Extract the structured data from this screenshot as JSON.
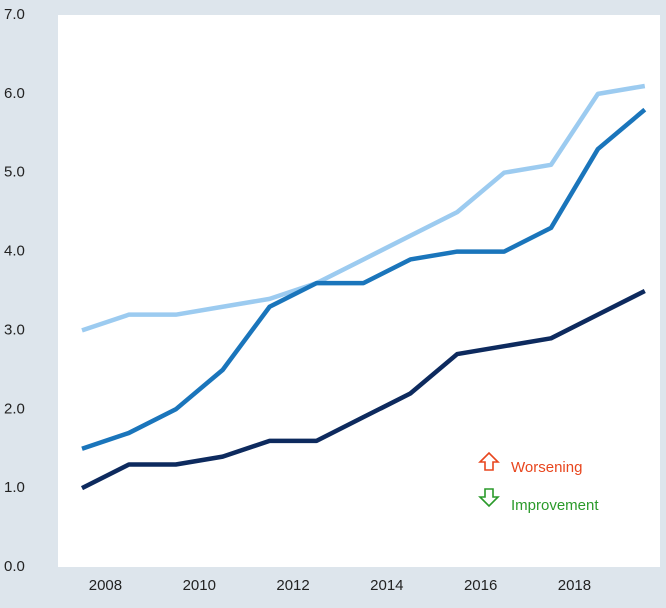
{
  "chart_data": {
    "type": "line",
    "categories": [
      null,
      "2008",
      null,
      "2010",
      null,
      "2012",
      null,
      "2014",
      null,
      "2016",
      null,
      "2018",
      null
    ],
    "series": [
      {
        "color": "#9ccbf0",
        "values": [
          3.0,
          3.2,
          3.2,
          3.3,
          3.4,
          3.6,
          3.9,
          4.2,
          4.5,
          5.0,
          5.1,
          6.0,
          6.1
        ]
      },
      {
        "color": "#1a75bb",
        "values": [
          1.5,
          1.7,
          2.0,
          2.5,
          3.3,
          3.6,
          3.6,
          3.9,
          4.0,
          4.0,
          4.3,
          5.3,
          5.8
        ]
      },
      {
        "color": "#0d2a5e",
        "values": [
          1.0,
          1.3,
          1.3,
          1.4,
          1.6,
          1.6,
          1.9,
          2.2,
          2.7,
          2.8,
          2.9,
          3.2,
          3.5
        ]
      }
    ],
    "ylim": [
      0,
      7
    ],
    "yticks": [
      {
        "value": 0,
        "label": "0.0"
      },
      {
        "value": 1,
        "label": "1.0"
      },
      {
        "value": 2,
        "label": "2.0"
      },
      {
        "value": 3,
        "label": "3.0"
      },
      {
        "value": 4,
        "label": "4.0"
      },
      {
        "value": 5,
        "label": "5.0"
      },
      {
        "value": 6,
        "label": "6.0"
      },
      {
        "value": 7,
        "label": "7.0"
      }
    ],
    "annotations": [
      {
        "text": "Worsening",
        "color": "#e8461e"
      },
      {
        "text": "Improvement",
        "color": "#2a9a2a"
      }
    ]
  }
}
